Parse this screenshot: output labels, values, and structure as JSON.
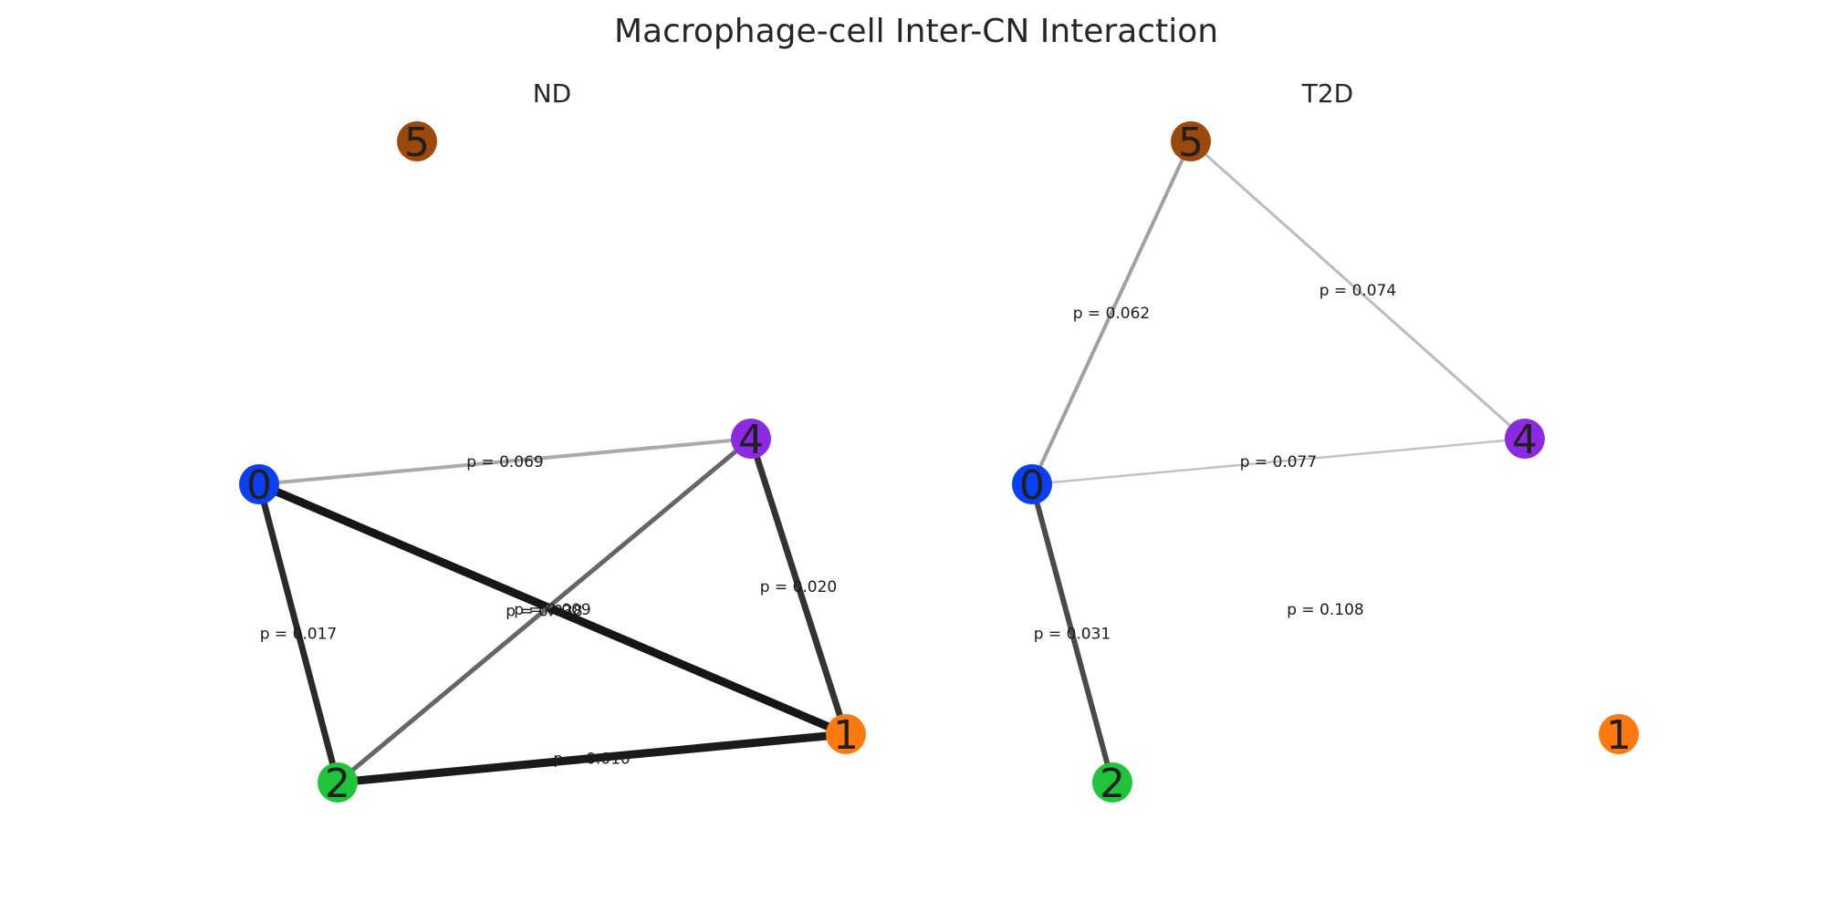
{
  "title": "Macrophage-cell Inter-CN Interaction",
  "colors": {
    "0": "#0a3ff2",
    "1": "#ff7a0e",
    "2": "#1fc43b",
    "4": "#8a2be2",
    "5": "#9c4a0c"
  },
  "panels": [
    {
      "key": "nd",
      "title": "ND",
      "nodes": [
        {
          "id": "0",
          "label": "0"
        },
        {
          "id": "1",
          "label": "1"
        },
        {
          "id": "2",
          "label": "2"
        },
        {
          "id": "4",
          "label": "4"
        },
        {
          "id": "5",
          "label": "5"
        }
      ],
      "edges": [
        {
          "source": "0",
          "target": "4",
          "p": "p = 0.069",
          "color": "#aaaaaa",
          "width": 4
        },
        {
          "source": "0",
          "target": "1",
          "p": "p = 0.009",
          "color": "#161616",
          "width": 9
        },
        {
          "source": "0",
          "target": "2",
          "p": "p = 0.017",
          "color": "#2a2a2a",
          "width": 7
        },
        {
          "source": "4",
          "target": "2",
          "p": "p = 0.038",
          "color": "#666666",
          "width": 5
        },
        {
          "source": "4",
          "target": "1",
          "p": "p = 0.020",
          "color": "#333333",
          "width": 7
        },
        {
          "source": "2",
          "target": "1",
          "p": "p = 0.010",
          "color": "#1a1a1a",
          "width": 9
        }
      ]
    },
    {
      "key": "t2d",
      "title": "T2D",
      "nodes": [
        {
          "id": "0",
          "label": "0"
        },
        {
          "id": "1",
          "label": "1"
        },
        {
          "id": "2",
          "label": "2"
        },
        {
          "id": "4",
          "label": "4"
        },
        {
          "id": "5",
          "label": "5"
        }
      ],
      "edges": [
        {
          "source": "0",
          "target": "5",
          "p": "p = 0.062",
          "color": "#a0a0a0",
          "width": 4
        },
        {
          "source": "5",
          "target": "4",
          "p": "p = 0.074",
          "color": "#bbbbbb",
          "width": 3
        },
        {
          "source": "0",
          "target": "4",
          "p": "p = 0.077",
          "color": "#c2c2c2",
          "width": 2.5
        },
        {
          "source": "0",
          "target": "2",
          "p": "p = 0.031",
          "color": "#4a4a4a",
          "width": 6
        },
        {
          "source": "0",
          "target": "1",
          "p": "p = 0.108",
          "color": "#ffffff",
          "width": 0
        }
      ]
    }
  ]
}
